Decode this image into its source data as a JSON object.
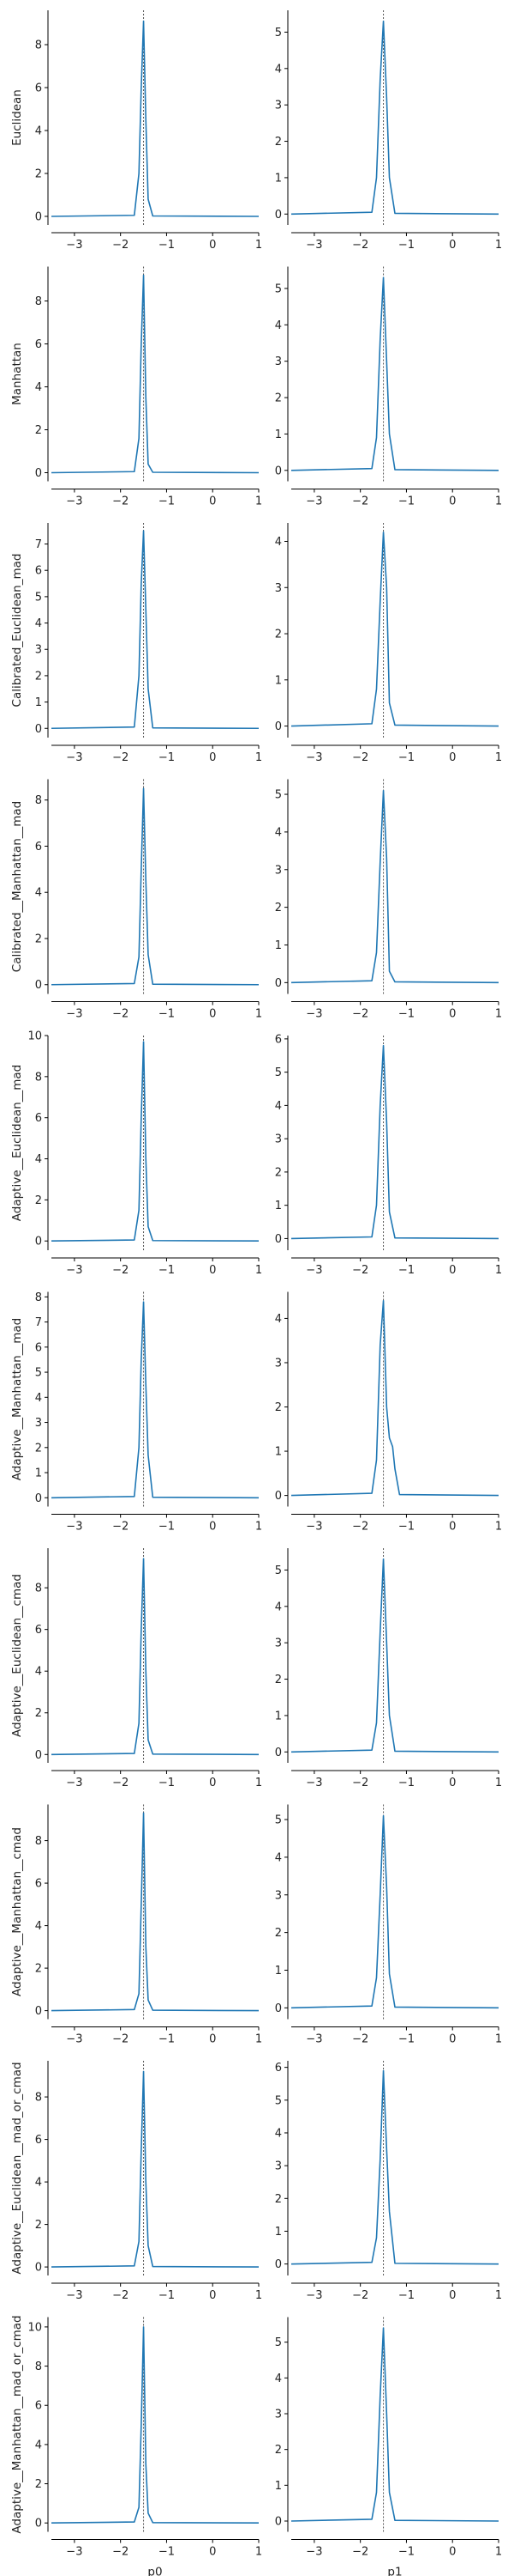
{
  "chart_data": {
    "type": "line",
    "layout": "grid-10x2",
    "line_color": "#1f77b4",
    "refline_color": "#555555",
    "xlim": [
      -3.5,
      1
    ],
    "xticks": [
      -3,
      -2,
      -1,
      0,
      1
    ],
    "xtick_labels": [
      "−3",
      "−2",
      "−1",
      "0",
      "1"
    ],
    "columns": [
      "p0",
      "p1"
    ],
    "reference_x": -1.5,
    "rows": [
      {
        "ylabel": "Euclidean",
        "panels": [
          {
            "ylim": [
              -0.4,
              9.6
            ],
            "yticks": [
              0,
              2,
              4,
              6,
              8
            ],
            "x": [
              -3.5,
              -1.7,
              -1.6,
              -1.55,
              -1.5,
              -1.45,
              -1.4,
              -1.3,
              1
            ],
            "y": [
              0,
              0.05,
              2.0,
              6.0,
              9.1,
              4.5,
              0.8,
              0.02,
              0
            ]
          },
          {
            "ylim": [
              -0.3,
              5.6
            ],
            "yticks": [
              0,
              1,
              2,
              3,
              4,
              5
            ],
            "x": [
              -3.5,
              -1.75,
              -1.65,
              -1.57,
              -1.5,
              -1.43,
              -1.37,
              -1.25,
              1
            ],
            "y": [
              0,
              0.05,
              1.0,
              3.7,
              5.3,
              3.2,
              1.0,
              0.02,
              0
            ]
          }
        ]
      },
      {
        "ylabel": "Manhattan",
        "panels": [
          {
            "ylim": [
              -0.4,
              9.6
            ],
            "yticks": [
              0,
              2,
              4,
              6,
              8
            ],
            "x": [
              -3.5,
              -1.7,
              -1.6,
              -1.55,
              -1.5,
              -1.45,
              -1.4,
              -1.3,
              1
            ],
            "y": [
              0,
              0.05,
              1.6,
              6.0,
              9.2,
              3.5,
              0.4,
              0.02,
              0
            ]
          },
          {
            "ylim": [
              -0.3,
              5.6
            ],
            "yticks": [
              0,
              1,
              2,
              3,
              4,
              5
            ],
            "x": [
              -3.5,
              -1.75,
              -1.65,
              -1.57,
              -1.5,
              -1.43,
              -1.37,
              -1.25,
              1
            ],
            "y": [
              0,
              0.05,
              0.9,
              3.6,
              5.3,
              3.0,
              1.0,
              0.02,
              0
            ]
          }
        ]
      },
      {
        "ylabel": "Calibrated_Euclidean_mad",
        "panels": [
          {
            "ylim": [
              -0.35,
              7.8
            ],
            "yticks": [
              0,
              1,
              2,
              3,
              4,
              5,
              6,
              7
            ],
            "x": [
              -3.5,
              -1.7,
              -1.6,
              -1.55,
              -1.5,
              -1.45,
              -1.4,
              -1.3,
              1
            ],
            "y": [
              0,
              0.05,
              2.0,
              5.5,
              7.5,
              4.5,
              1.5,
              0.02,
              0
            ]
          },
          {
            "ylim": [
              -0.25,
              4.4
            ],
            "yticks": [
              0,
              1,
              2,
              3,
              4
            ],
            "x": [
              -3.5,
              -1.75,
              -1.65,
              -1.57,
              -1.5,
              -1.43,
              -1.37,
              -1.25,
              1
            ],
            "y": [
              0,
              0.05,
              0.8,
              2.7,
              4.2,
              3.0,
              0.5,
              0.02,
              0
            ]
          }
        ]
      },
      {
        "ylabel": "Calibrated__Manhattan__mad",
        "panels": [
          {
            "ylim": [
              -0.4,
              8.9
            ],
            "yticks": [
              0,
              2,
              4,
              6,
              8
            ],
            "x": [
              -3.5,
              -1.7,
              -1.6,
              -1.55,
              -1.5,
              -1.45,
              -1.4,
              -1.3,
              1
            ],
            "y": [
              0,
              0.05,
              1.2,
              5.0,
              8.5,
              4.5,
              1.3,
              0.02,
              0
            ]
          },
          {
            "ylim": [
              -0.3,
              5.4
            ],
            "yticks": [
              0,
              1,
              2,
              3,
              4,
              5
            ],
            "x": [
              -3.5,
              -1.75,
              -1.65,
              -1.57,
              -1.5,
              -1.43,
              -1.37,
              -1.25,
              1
            ],
            "y": [
              0,
              0.05,
              0.8,
              3.2,
              5.1,
              3.3,
              0.3,
              0.02,
              0
            ]
          }
        ]
      },
      {
        "ylabel": "Adaptive__Euclidean__mad",
        "panels": [
          {
            "ylim": [
              -0.45,
              10
            ],
            "yticks": [
              0,
              2,
              4,
              6,
              8,
              10
            ],
            "x": [
              -3.5,
              -1.7,
              -1.6,
              -1.55,
              -1.5,
              -1.45,
              -1.4,
              -1.3,
              1
            ],
            "y": [
              0,
              0.05,
              1.5,
              6.0,
              9.7,
              4.0,
              0.7,
              0.02,
              0
            ]
          },
          {
            "ylim": [
              -0.35,
              6.1
            ],
            "yticks": [
              0,
              1,
              2,
              3,
              4,
              5,
              6
            ],
            "x": [
              -3.5,
              -1.75,
              -1.65,
              -1.57,
              -1.5,
              -1.43,
              -1.37,
              -1.25,
              1
            ],
            "y": [
              0,
              0.05,
              1.0,
              4.0,
              5.8,
              3.5,
              0.8,
              0.02,
              0
            ]
          }
        ]
      },
      {
        "ylabel": "Adaptive__Manhattan__mad",
        "panels": [
          {
            "ylim": [
              -0.35,
              8.2
            ],
            "yticks": [
              0,
              1,
              2,
              3,
              4,
              5,
              6,
              7,
              8
            ],
            "x": [
              -3.5,
              -1.7,
              -1.6,
              -1.55,
              -1.5,
              -1.45,
              -1.4,
              -1.3,
              1
            ],
            "y": [
              0,
              0.05,
              2.0,
              5.5,
              7.8,
              4.5,
              1.7,
              0.02,
              0
            ]
          },
          {
            "ylim": [
              -0.25,
              4.6
            ],
            "yticks": [
              0,
              1,
              2,
              3,
              4
            ],
            "x": [
              -3.5,
              -1.75,
              -1.65,
              -1.57,
              -1.5,
              -1.43,
              -1.37,
              -1.3,
              -1.25,
              -1.15,
              1
            ],
            "y": [
              0,
              0.05,
              0.8,
              3.4,
              4.4,
              2.0,
              1.3,
              1.1,
              0.6,
              0.02,
              0
            ]
          }
        ]
      },
      {
        "ylabel": "Adaptive__Euclidean__cmad",
        "panels": [
          {
            "ylim": [
              -0.4,
              9.9
            ],
            "yticks": [
              0,
              2,
              4,
              6,
              8
            ],
            "x": [
              -3.5,
              -1.7,
              -1.6,
              -1.55,
              -1.5,
              -1.45,
              -1.4,
              -1.3,
              1
            ],
            "y": [
              0,
              0.05,
              1.5,
              6.0,
              9.4,
              4.0,
              0.7,
              0.02,
              0
            ]
          },
          {
            "ylim": [
              -0.3,
              5.6
            ],
            "yticks": [
              0,
              1,
              2,
              3,
              4,
              5
            ],
            "x": [
              -3.5,
              -1.75,
              -1.65,
              -1.57,
              -1.5,
              -1.43,
              -1.37,
              -1.25,
              1
            ],
            "y": [
              0,
              0.05,
              0.8,
              3.3,
              5.3,
              3.0,
              1.0,
              0.02,
              0
            ]
          }
        ]
      },
      {
        "ylabel": "Adaptive__Manhattan__cmad",
        "panels": [
          {
            "ylim": [
              -0.4,
              9.7
            ],
            "yticks": [
              0,
              2,
              4,
              6,
              8
            ],
            "x": [
              -3.5,
              -1.7,
              -1.6,
              -1.55,
              -1.5,
              -1.45,
              -1.4,
              -1.3,
              1
            ],
            "y": [
              0,
              0.05,
              0.8,
              5.0,
              9.3,
              3.0,
              0.5,
              0.02,
              0
            ]
          },
          {
            "ylim": [
              -0.3,
              5.4
            ],
            "yticks": [
              0,
              1,
              2,
              3,
              4,
              5
            ],
            "x": [
              -3.5,
              -1.75,
              -1.65,
              -1.57,
              -1.5,
              -1.43,
              -1.37,
              -1.25,
              1
            ],
            "y": [
              0,
              0.05,
              0.8,
              3.0,
              5.1,
              3.2,
              0.9,
              0.02,
              0
            ]
          }
        ]
      },
      {
        "ylabel": "Adaptive__Euclidean__mad_or_cmad",
        "panels": [
          {
            "ylim": [
              -0.4,
              9.7
            ],
            "yticks": [
              0,
              2,
              4,
              6,
              8
            ],
            "x": [
              -3.5,
              -1.7,
              -1.6,
              -1.55,
              -1.5,
              -1.45,
              -1.4,
              -1.3,
              1
            ],
            "y": [
              0,
              0.05,
              1.2,
              5.5,
              9.2,
              4.0,
              1.0,
              0.02,
              0
            ]
          },
          {
            "ylim": [
              -0.35,
              6.2
            ],
            "yticks": [
              0,
              1,
              2,
              3,
              4,
              5,
              6
            ],
            "x": [
              -3.5,
              -1.75,
              -1.65,
              -1.57,
              -1.5,
              -1.43,
              -1.37,
              -1.25,
              1
            ],
            "y": [
              0,
              0.05,
              0.8,
              3.2,
              5.9,
              3.5,
              1.6,
              0.02,
              0
            ]
          }
        ]
      },
      {
        "ylabel": "Adaptive__Manhattan__mad_or_cmad",
        "panels": [
          {
            "ylim": [
              -0.45,
              10.5
            ],
            "yticks": [
              0,
              2,
              4,
              6,
              8,
              10
            ],
            "x": [
              -3.5,
              -1.7,
              -1.6,
              -1.55,
              -1.5,
              -1.45,
              -1.4,
              -1.3,
              1
            ],
            "y": [
              0,
              0.05,
              0.8,
              5.0,
              10.0,
              3.0,
              0.5,
              0.02,
              0
            ]
          },
          {
            "ylim": [
              -0.3,
              5.7
            ],
            "yticks": [
              0,
              1,
              2,
              3,
              4,
              5
            ],
            "x": [
              -3.5,
              -1.75,
              -1.65,
              -1.57,
              -1.5,
              -1.43,
              -1.37,
              -1.25,
              1
            ],
            "y": [
              0,
              0.05,
              0.8,
              3.5,
              5.4,
              3.0,
              0.8,
              0.02,
              0
            ]
          }
        ]
      }
    ]
  }
}
